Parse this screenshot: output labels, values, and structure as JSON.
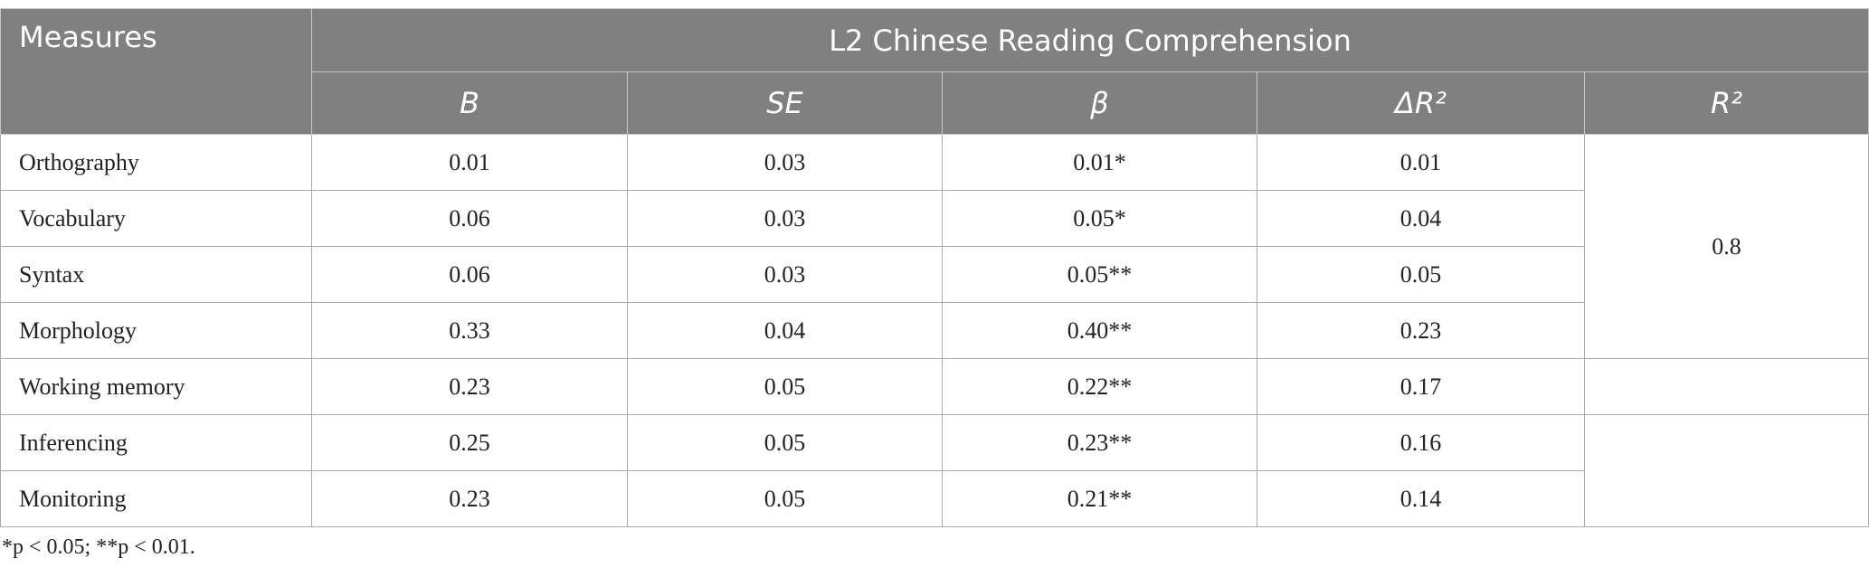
{
  "table": {
    "header": {
      "measures": "Measures",
      "group": "L2 Chinese Reading Comprehension",
      "columns": [
        "B",
        "SE",
        "β",
        "ΔR²",
        "R²"
      ]
    },
    "rows": [
      [
        "Orthography",
        "0.01",
        "0.03",
        "0.01*",
        "0.01"
      ],
      [
        "Vocabulary",
        "0.06",
        "0.03",
        "0.05*",
        "0.04"
      ],
      [
        "Syntax",
        "0.06",
        "0.03",
        "0.05**",
        "0.05"
      ],
      [
        "Morphology",
        "0.33",
        "0.04",
        "0.40**",
        "0.23"
      ],
      [
        "Working memory",
        "0.23",
        "0.05",
        "0.22**",
        "0.17"
      ],
      [
        "Inferencing",
        "0.25",
        "0.05",
        "0.23**",
        "0.16"
      ],
      [
        "Monitoring",
        "0.23",
        "0.05",
        "0.21**",
        "0.14"
      ]
    ],
    "r2": "0.8"
  },
  "footnote": "*p < 0.05; **p < 0.01."
}
